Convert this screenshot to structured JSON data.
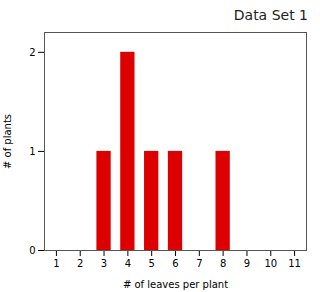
{
  "chart_data": {
    "type": "bar",
    "title": "Data Set 1",
    "xlabel": "# of leaves per plant",
    "ylabel": "# of plants",
    "x": [
      3,
      4,
      5,
      6,
      8
    ],
    "values": [
      1,
      2,
      1,
      1,
      1
    ],
    "color": "#dd0000",
    "xlim": [
      0.5,
      11.5
    ],
    "xticks": [
      1,
      2,
      3,
      4,
      5,
      6,
      7,
      8,
      9,
      10,
      11
    ],
    "ylim": [
      0,
      2.2
    ],
    "yticks": [
      0,
      1,
      2
    ],
    "grid": false
  }
}
